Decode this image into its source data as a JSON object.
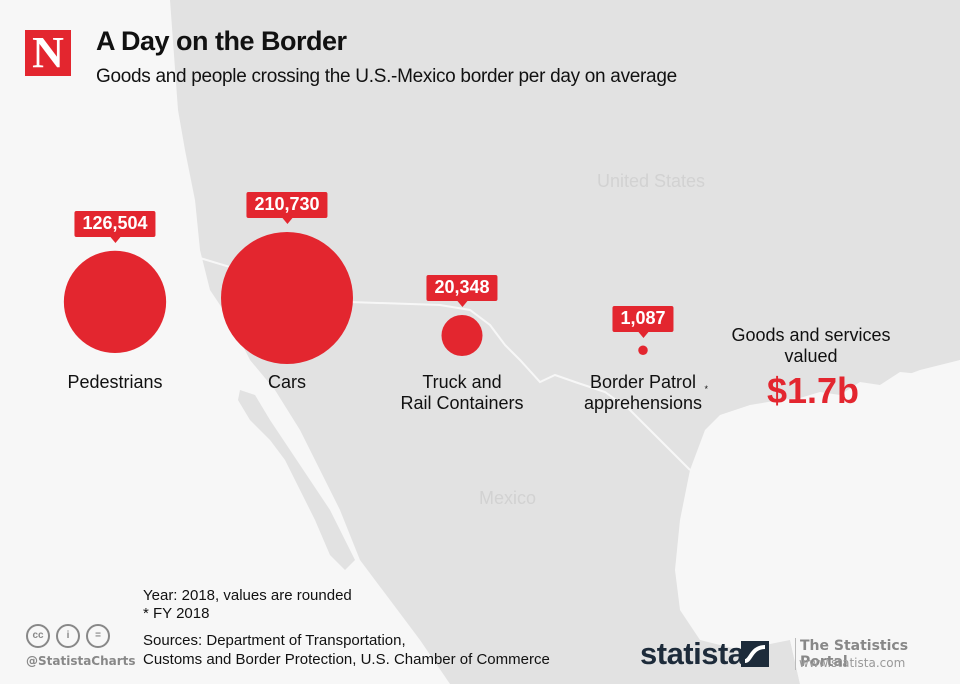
{
  "header": {
    "logo_letter": "N",
    "title": "A Day on the Border",
    "subtitle": "Goods and people crossing the U.S.-Mexico border per day on average"
  },
  "map_labels": {
    "us": "United States",
    "mexico": "Mexico"
  },
  "chart_data": {
    "type": "bubble",
    "title": "A Day on the Border",
    "subtitle": "Goods and people crossing the U.S.-Mexico border per day on average",
    "categories": [
      "Pedestrians",
      "Cars",
      "Truck and Rail Containers",
      "Border Patrol apprehensions*"
    ],
    "values": [
      126504,
      210730,
      20348,
      1087
    ],
    "value_labels": [
      "126,504",
      "210,730",
      "20,348",
      "1,087"
    ],
    "category_lines": [
      [
        "Pedestrians"
      ],
      [
        "Cars"
      ],
      [
        "Truck and",
        "Rail Containers"
      ],
      [
        "Border Patrol",
        "apprehensions"
      ]
    ],
    "footnote_marker": [
      false,
      false,
      false,
      true
    ],
    "color": "#e3262f",
    "annotation": {
      "label_lines": [
        "Goods and services",
        "valued"
      ],
      "value": "$1.7b"
    }
  },
  "footer": {
    "notes": [
      "Year: 2018, values are rounded",
      "* FY 2018"
    ],
    "sources": [
      "Sources: Department of Transportation,",
      "Customs and Border Protection, U.S. Chamber of Commerce"
    ],
    "license_icons": [
      "cc",
      "by",
      "nd"
    ],
    "handle": "@StatistaCharts",
    "brand": "statista",
    "portal_title": "The Statistics Portal",
    "portal_url": "www.statista.com"
  },
  "colors": {
    "accent": "#e3262f",
    "land": "#e2e2e2",
    "sea": "#f7f7f7",
    "brand": "#1d2b3a"
  }
}
